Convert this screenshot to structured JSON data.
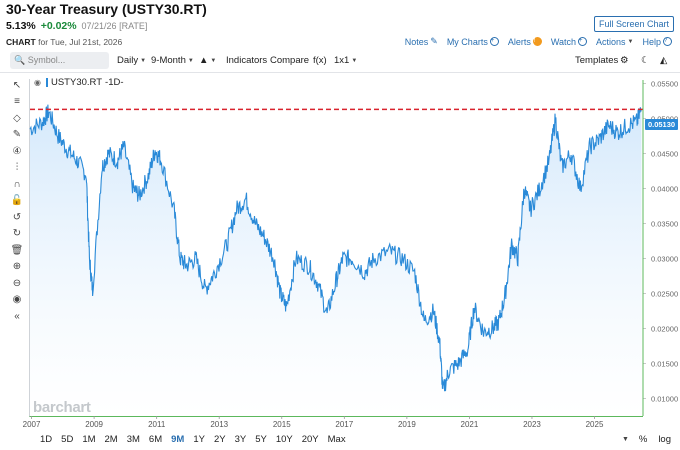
{
  "header": {
    "title": "30-Year Treasury (USTY30.RT)",
    "last": "5.13%",
    "change": "+0.02%",
    "meta": "07/21/26 [RATE]",
    "chart_label": "CHART",
    "chart_date": "for Tue, Jul 21st, 2026",
    "fullscreen_label": "Full Screen Chart"
  },
  "toplinks": {
    "notes": "Notes",
    "my_charts": "My Charts",
    "alerts": "Alerts",
    "watch": "Watch",
    "actions": "Actions",
    "help": "Help"
  },
  "toolbar": {
    "symbol_placeholder": "Symbol...",
    "interval": "Daily",
    "period": "9-Month",
    "indicators": "Indicators",
    "compare": "Compare",
    "fx": "f(x)",
    "layout": "1x1",
    "templates": "Templates"
  },
  "legend": {
    "symbol": "USTY30.RT",
    "interval": "-1D-"
  },
  "price_flag": "0.05130",
  "watermark": "barchart",
  "ranges": [
    "1D",
    "5D",
    "1M",
    "2M",
    "3M",
    "6M",
    "9M",
    "1Y",
    "2Y",
    "3Y",
    "5Y",
    "10Y",
    "20Y",
    "Max"
  ],
  "active_range": "9M",
  "bottom_right": {
    "percent": "%",
    "log": "log"
  },
  "colors": {
    "line": "#2a8ad8",
    "fill": "#dcefff",
    "ref_line": "#d9232d",
    "accent": "#2a6fb0"
  },
  "chart_data": {
    "type": "area",
    "title": "",
    "xlabel": "",
    "ylabel": "",
    "x_ticks": [
      "2007",
      "2009",
      "2011",
      "2013",
      "2015",
      "2017",
      "2019",
      "2021",
      "2023",
      "2025"
    ],
    "y_ticks": [
      "0.05500",
      "0.05000",
      "0.04500",
      "0.04000",
      "0.03500",
      "0.03000",
      "0.02500",
      "0.02000",
      "0.01500",
      "0.01000"
    ],
    "ylim": [
      0.0075,
      0.0555
    ],
    "xlim": [
      2007.0,
      2026.6
    ],
    "reference_line": 0.0513,
    "series": [
      {
        "x": [
          2007.0,
          2007.4,
          2007.6,
          2007.9,
          2008.2,
          2008.5,
          2008.8,
          2008.9,
          2009.0,
          2009.3,
          2009.5,
          2009.8,
          2010.0,
          2010.3,
          2010.5,
          2010.8,
          2011.0,
          2011.2,
          2011.6,
          2011.8,
          2012.0,
          2012.3,
          2012.6,
          2012.9,
          2013.3,
          2013.6,
          2013.9,
          2014.2,
          2014.5,
          2014.8,
          2015.0,
          2015.2,
          2015.5,
          2015.9,
          2016.2,
          2016.5,
          2016.8,
          2017.0,
          2017.3,
          2017.7,
          2018.0,
          2018.5,
          2018.9,
          2019.3,
          2019.6,
          2019.9,
          2020.1,
          2020.2,
          2020.4,
          2020.7,
          2021.0,
          2021.2,
          2021.5,
          2021.8,
          2022.0,
          2022.2,
          2022.4,
          2022.6,
          2022.8,
          2023.0,
          2023.3,
          2023.6,
          2023.8,
          2024.0,
          2024.3,
          2024.6,
          2024.9,
          2025.2,
          2025.5,
          2025.8,
          2026.1,
          2026.4,
          2026.55
        ],
        "values": [
          0.0485,
          0.0495,
          0.051,
          0.0475,
          0.0455,
          0.044,
          0.042,
          0.03,
          0.0255,
          0.043,
          0.045,
          0.044,
          0.046,
          0.04,
          0.039,
          0.042,
          0.0455,
          0.044,
          0.037,
          0.03,
          0.029,
          0.03,
          0.0255,
          0.028,
          0.032,
          0.037,
          0.0385,
          0.035,
          0.033,
          0.03,
          0.025,
          0.023,
          0.03,
          0.029,
          0.0265,
          0.022,
          0.027,
          0.03,
          0.03,
          0.028,
          0.03,
          0.031,
          0.03,
          0.028,
          0.021,
          0.0225,
          0.018,
          0.011,
          0.014,
          0.015,
          0.017,
          0.023,
          0.0195,
          0.02,
          0.021,
          0.025,
          0.032,
          0.03,
          0.04,
          0.037,
          0.04,
          0.044,
          0.05,
          0.043,
          0.045,
          0.04,
          0.046,
          0.047,
          0.049,
          0.048,
          0.049,
          0.0495,
          0.0513
        ]
      }
    ]
  }
}
